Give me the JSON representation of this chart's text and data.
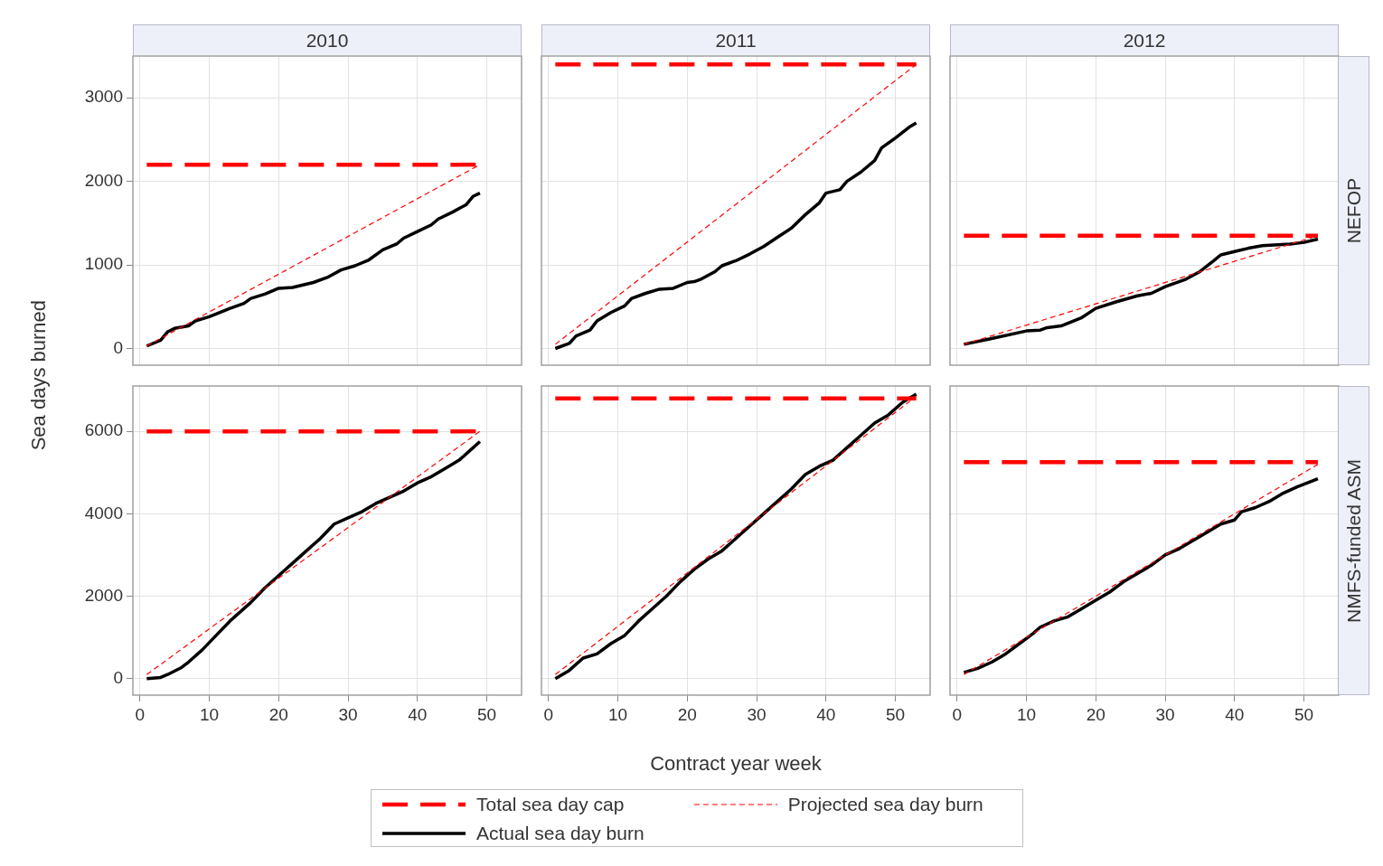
{
  "chart_data": [
    {
      "type": "line",
      "title": "2010",
      "ylabel": "Sea days burned",
      "xlim": [
        -1,
        55
      ],
      "ylim": [
        -200,
        3500
      ],
      "xticks": [
        0,
        10,
        20,
        30,
        40,
        50
      ],
      "yticks": [
        0,
        1000,
        2000,
        3000
      ],
      "grid": true,
      "tick_labels": "y",
      "series": [
        {
          "color": "#ff0000",
          "line_style": "dashed",
          "x": [
            1,
            49
          ],
          "values": [
            2200,
            2200
          ]
        },
        {
          "color": "#ff0000",
          "line_style": "dashed",
          "x": [
            1,
            49
          ],
          "values": [
            30,
            2200
          ]
        },
        {
          "color": "#000000",
          "line_style": "solid",
          "x": [
            1,
            3,
            4,
            5,
            7,
            8,
            10,
            13,
            15,
            16,
            18,
            20,
            22,
            25,
            27,
            29,
            31,
            33,
            35,
            37,
            38,
            40,
            42,
            43,
            45,
            47,
            48,
            49
          ],
          "values": [
            30,
            100,
            200,
            240,
            270,
            330,
            380,
            480,
            540,
            600,
            650,
            720,
            730,
            790,
            850,
            940,
            990,
            1060,
            1180,
            1250,
            1320,
            1400,
            1480,
            1550,
            1630,
            1720,
            1820,
            1860
          ]
        }
      ]
    },
    {
      "type": "line",
      "title": "2011",
      "xlim": [
        -1,
        55
      ],
      "ylim": [
        -200,
        3500
      ],
      "xticks": [
        0,
        10,
        20,
        30,
        40,
        50
      ],
      "yticks": [
        0,
        1000,
        2000,
        3000
      ],
      "grid": true,
      "tick_labels": false,
      "series": [
        {
          "color": "#ff0000",
          "line_style": "dashed",
          "x": [
            1,
            53
          ],
          "values": [
            3400,
            3400
          ]
        },
        {
          "color": "#ff0000",
          "line_style": "dashed",
          "x": [
            1,
            53
          ],
          "values": [
            50,
            3400
          ]
        },
        {
          "color": "#000000",
          "line_style": "solid",
          "x": [
            1,
            3,
            4,
            6,
            7,
            9,
            11,
            12,
            14,
            16,
            18,
            20,
            21,
            22,
            24,
            25,
            27,
            29,
            31,
            33,
            35,
            37,
            39,
            40,
            42,
            43,
            45,
            47,
            48,
            50,
            52,
            53
          ],
          "values": [
            0,
            60,
            150,
            220,
            330,
            430,
            510,
            600,
            660,
            710,
            720,
            790,
            800,
            830,
            920,
            990,
            1050,
            1130,
            1220,
            1330,
            1440,
            1600,
            1740,
            1860,
            1900,
            2000,
            2110,
            2250,
            2400,
            2520,
            2650,
            2700
          ]
        }
      ]
    },
    {
      "type": "line",
      "title": "2012",
      "y2label": "NEFOP",
      "xlim": [
        -1,
        55
      ],
      "ylim": [
        -200,
        3500
      ],
      "xticks": [
        0,
        10,
        20,
        30,
        40,
        50
      ],
      "yticks": [
        0,
        1000,
        2000,
        3000
      ],
      "grid": true,
      "tick_labels": false,
      "series": [
        {
          "color": "#ff0000",
          "line_style": "dashed",
          "x": [
            1,
            52
          ],
          "values": [
            1350,
            1350
          ]
        },
        {
          "color": "#ff0000",
          "line_style": "dashed",
          "x": [
            1,
            52
          ],
          "values": [
            50,
            1350
          ]
        },
        {
          "color": "#000000",
          "line_style": "solid",
          "x": [
            1,
            5,
            10,
            12,
            13,
            15,
            18,
            20,
            23,
            26,
            28,
            30,
            33,
            35,
            37,
            38,
            40,
            42,
            44,
            48,
            50,
            52
          ],
          "values": [
            50,
            120,
            210,
            220,
            250,
            270,
            370,
            480,
            560,
            630,
            660,
            740,
            830,
            920,
            1050,
            1120,
            1160,
            1200,
            1230,
            1250,
            1270,
            1310
          ]
        }
      ]
    },
    {
      "type": "line",
      "xlim": [
        -1,
        55
      ],
      "ylim": [
        -400,
        7100
      ],
      "xticks": [
        0,
        10,
        20,
        30,
        40,
        50
      ],
      "yticks": [
        0,
        2000,
        4000,
        6000
      ],
      "grid": true,
      "series": [
        {
          "color": "#ff0000",
          "line_style": "dashed",
          "x": [
            1,
            49
          ],
          "values": [
            6000,
            6000
          ]
        },
        {
          "color": "#ff0000",
          "line_style": "dashed",
          "x": [
            1,
            49
          ],
          "values": [
            100,
            6000
          ]
        },
        {
          "color": "#000000",
          "line_style": "solid",
          "x": [
            1,
            3,
            4,
            6,
            7,
            9,
            11,
            13,
            16,
            18,
            20,
            22,
            24,
            26,
            28,
            30,
            32,
            34,
            36,
            38,
            40,
            42,
            44,
            46,
            48,
            49
          ],
          "values": [
            0,
            30,
            100,
            270,
            400,
            700,
            1050,
            1400,
            1850,
            2200,
            2500,
            2800,
            3100,
            3400,
            3750,
            3900,
            4050,
            4250,
            4400,
            4550,
            4750,
            4900,
            5100,
            5300,
            5600,
            5750
          ]
        }
      ]
    },
    {
      "type": "line",
      "xlabel": "Contract year week",
      "xlim": [
        -1,
        55
      ],
      "ylim": [
        -400,
        7100
      ],
      "xticks": [
        0,
        10,
        20,
        30,
        40,
        50
      ],
      "yticks": [
        0,
        2000,
        4000,
        6000
      ],
      "grid": true,
      "tick_labels": "x",
      "legend": "bottom",
      "series": [
        {
          "name": "Total sea day cap",
          "color": "#ff0000",
          "line_style": "dashed",
          "x": [
            1,
            53
          ],
          "values": [
            6800,
            6800
          ]
        },
        {
          "name": "Projected sea day burn",
          "color": "#ff0000",
          "line_style": "dashed",
          "x": [
            1,
            53
          ],
          "values": [
            100,
            6850
          ]
        },
        {
          "name": "Actual sea day burn",
          "color": "#000000",
          "line_style": "solid",
          "x": [
            1,
            3,
            5,
            7,
            9,
            11,
            13,
            15,
            17,
            19,
            21,
            23,
            25,
            27,
            29,
            31,
            33,
            35,
            37,
            39,
            41,
            43,
            45,
            47,
            49,
            51,
            53
          ],
          "values": [
            0,
            200,
            500,
            600,
            850,
            1050,
            1400,
            1700,
            2000,
            2350,
            2650,
            2900,
            3100,
            3400,
            3700,
            4000,
            4300,
            4600,
            4950,
            5150,
            5300,
            5600,
            5900,
            6200,
            6400,
            6700,
            6900
          ]
        }
      ]
    },
    {
      "type": "line",
      "y2label": "NMFS-funded ASM",
      "xlim": [
        -1,
        55
      ],
      "ylim": [
        -400,
        7100
      ],
      "xticks": [
        0,
        10,
        20,
        30,
        40,
        50
      ],
      "yticks": [
        0,
        2000,
        4000,
        6000
      ],
      "grid": true,
      "tick_labels": "x",
      "series": [
        {
          "color": "#ff0000",
          "line_style": "dashed",
          "x": [
            1,
            52
          ],
          "values": [
            5250,
            5250
          ]
        },
        {
          "color": "#ff0000",
          "line_style": "dashed",
          "x": [
            1,
            52
          ],
          "values": [
            100,
            5200
          ]
        },
        {
          "color": "#000000",
          "line_style": "solid",
          "x": [
            1,
            3,
            5,
            7,
            9,
            11,
            12,
            14,
            16,
            18,
            20,
            22,
            24,
            26,
            28,
            30,
            32,
            34,
            36,
            38,
            40,
            41,
            43,
            45,
            47,
            49,
            52
          ],
          "values": [
            150,
            250,
            400,
            600,
            850,
            1100,
            1250,
            1400,
            1500,
            1700,
            1900,
            2100,
            2350,
            2550,
            2750,
            3000,
            3150,
            3350,
            3550,
            3750,
            3850,
            4050,
            4150,
            4300,
            4500,
            4650,
            4850
          ]
        }
      ]
    }
  ]
}
